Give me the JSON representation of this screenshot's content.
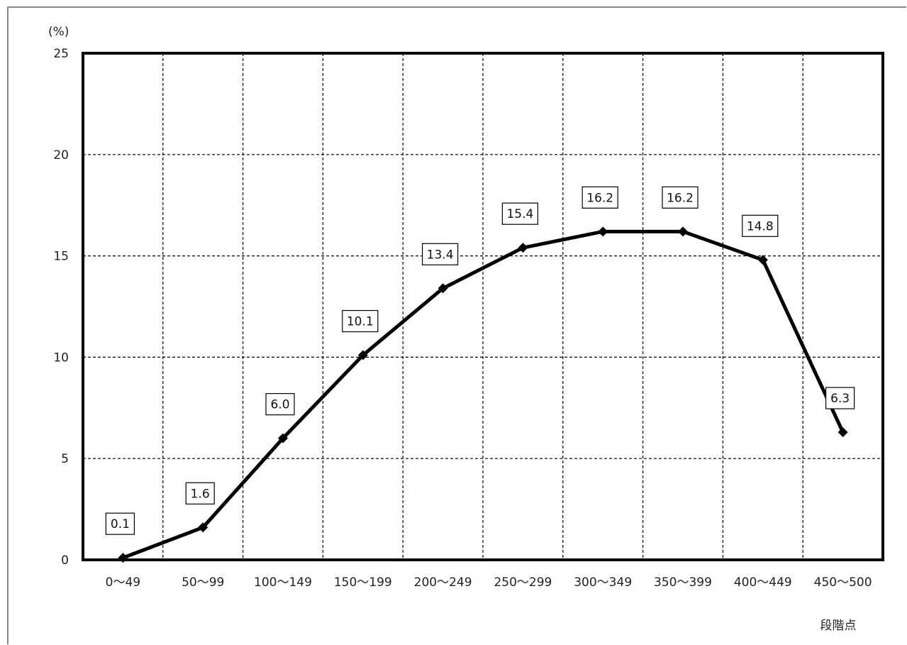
{
  "chart_data": {
    "type": "line",
    "title": "",
    "ylabel": "(%)",
    "xlabel": "段階点",
    "ylim": [
      0,
      25
    ],
    "yticks": [
      0,
      5,
      10,
      15,
      20,
      25
    ],
    "grid": true,
    "categories": [
      "0〜49",
      "50〜99",
      "100〜149",
      "150〜199",
      "200〜249",
      "250〜299",
      "300〜349",
      "350〜399",
      "400〜449",
      "450〜500"
    ],
    "series": [
      {
        "values": [
          0.1,
          1.6,
          6.0,
          10.1,
          13.4,
          15.4,
          16.2,
          16.2,
          14.8,
          6.3
        ],
        "labels": [
          "0.1",
          "1.6",
          "6.0",
          "10.1",
          "13.4",
          "15.4",
          "16.2",
          "16.2",
          "14.8",
          "6.3"
        ],
        "color": "#000000",
        "marker": "diamond"
      }
    ]
  }
}
